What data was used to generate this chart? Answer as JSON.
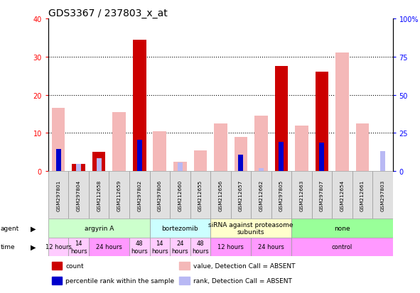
{
  "title": "GDS3367 / 237803_x_at",
  "samples": [
    "GSM297801",
    "GSM297804",
    "GSM212658",
    "GSM212659",
    "GSM297802",
    "GSM297806",
    "GSM212660",
    "GSM212655",
    "GSM212656",
    "GSM212657",
    "GSM212662",
    "GSM297805",
    "GSM212663",
    "GSM297807",
    "GSM212654",
    "GSM212661",
    "GSM297803"
  ],
  "count_values": [
    0,
    2,
    5,
    0,
    34.5,
    0,
    0,
    0,
    0,
    0,
    0,
    27.5,
    0,
    26.0,
    0,
    0,
    0
  ],
  "count_absent": [
    16.5,
    0,
    0,
    15.5,
    0,
    10.5,
    2.5,
    5.5,
    12.5,
    9.0,
    14.5,
    0,
    12.0,
    0,
    31.0,
    12.5,
    0
  ],
  "rank_present": [
    14.5,
    0,
    0,
    0,
    20.5,
    0,
    0,
    0,
    0,
    11.0,
    0,
    19.0,
    0,
    18.5,
    0,
    0,
    0
  ],
  "rank_absent": [
    0,
    5.0,
    8.5,
    0,
    0,
    0,
    5.5,
    0,
    0,
    0,
    2.0,
    0,
    0,
    0,
    0,
    0,
    13.0
  ],
  "ylim_left": [
    0,
    40
  ],
  "ylim_right": [
    0,
    100
  ],
  "yticks_left": [
    0,
    10,
    20,
    30,
    40
  ],
  "yticks_right": [
    0,
    25,
    50,
    75,
    100
  ],
  "ytick_labels_right": [
    "0",
    "25",
    "50",
    "75",
    "100%"
  ],
  "color_count": "#cc0000",
  "color_count_absent": "#f4b8b8",
  "color_rank_present": "#0000cc",
  "color_rank_absent": "#b8b8f4",
  "agents": [
    {
      "label": "argyrin A",
      "start": 0,
      "end": 5,
      "color": "#ccffcc"
    },
    {
      "label": "bortezomib",
      "start": 5,
      "end": 8,
      "color": "#ccffff"
    },
    {
      "label": "siRNA against proteasome\nsubunits",
      "start": 8,
      "end": 12,
      "color": "#ffffcc"
    },
    {
      "label": "none",
      "start": 12,
      "end": 17,
      "color": "#99ff99"
    }
  ],
  "times": [
    {
      "label": "12 hours",
      "start": 0,
      "end": 1,
      "color": "#ffccff"
    },
    {
      "label": "14\nhours",
      "start": 1,
      "end": 2,
      "color": "#ffccff"
    },
    {
      "label": "24 hours",
      "start": 2,
      "end": 4,
      "color": "#ff99ff"
    },
    {
      "label": "48\nhours",
      "start": 4,
      "end": 5,
      "color": "#ffccff"
    },
    {
      "label": "14\nhours",
      "start": 5,
      "end": 6,
      "color": "#ffccff"
    },
    {
      "label": "24\nhours",
      "start": 6,
      "end": 7,
      "color": "#ffccff"
    },
    {
      "label": "48\nhours",
      "start": 7,
      "end": 8,
      "color": "#ffccff"
    },
    {
      "label": "12 hours",
      "start": 8,
      "end": 10,
      "color": "#ff99ff"
    },
    {
      "label": "24 hours",
      "start": 10,
      "end": 12,
      "color": "#ff99ff"
    },
    {
      "label": "control",
      "start": 12,
      "end": 17,
      "color": "#ff99ff"
    }
  ],
  "legend_items": [
    {
      "label": "count",
      "color": "#cc0000"
    },
    {
      "label": "percentile rank within the sample",
      "color": "#0000cc"
    },
    {
      "label": "value, Detection Call = ABSENT",
      "color": "#f4b8b8"
    },
    {
      "label": "rank, Detection Call = ABSENT",
      "color": "#b8b8f4"
    }
  ],
  "bar_width": 0.65,
  "rank_bar_width": 0.25
}
